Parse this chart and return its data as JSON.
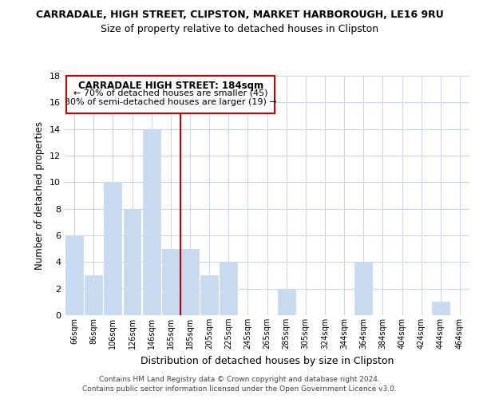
{
  "title": "CARRADALE, HIGH STREET, CLIPSTON, MARKET HARBOROUGH, LE16 9RU",
  "subtitle": "Size of property relative to detached houses in Clipston",
  "xlabel": "Distribution of detached houses by size in Clipston",
  "ylabel": "Number of detached properties",
  "bar_labels": [
    "66sqm",
    "86sqm",
    "106sqm",
    "126sqm",
    "146sqm",
    "165sqm",
    "185sqm",
    "205sqm",
    "225sqm",
    "245sqm",
    "265sqm",
    "285sqm",
    "305sqm",
    "324sqm",
    "344sqm",
    "364sqm",
    "384sqm",
    "404sqm",
    "424sqm",
    "444sqm",
    "464sqm"
  ],
  "bar_values": [
    6,
    3,
    10,
    8,
    14,
    5,
    5,
    3,
    4,
    0,
    0,
    2,
    0,
    0,
    0,
    4,
    0,
    0,
    0,
    1,
    0
  ],
  "bar_color": "#c9d9f0",
  "bar_edge_color": "#c9d9f0",
  "reference_line_color": "#cc0000",
  "ylim": [
    0,
    18
  ],
  "yticks": [
    0,
    2,
    4,
    6,
    8,
    10,
    12,
    14,
    16,
    18
  ],
  "annotation_title": "CARRADALE HIGH STREET: 184sqm",
  "annotation_line1": "← 70% of detached houses are smaller (45)",
  "annotation_line2": "30% of semi-detached houses are larger (19) →",
  "annotation_box_color": "#ffffff",
  "annotation_box_edge": "#cc0000",
  "footer_line1": "Contains HM Land Registry data © Crown copyright and database right 2024.",
  "footer_line2": "Contains public sector information licensed under the Open Government Licence v3.0.",
  "background_color": "#ffffff",
  "grid_color": "#ccd5e8",
  "title_fontsize": 9,
  "subtitle_fontsize": 9
}
